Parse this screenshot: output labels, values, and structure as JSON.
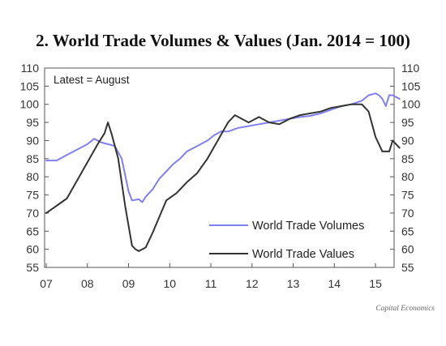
{
  "chart_data": {
    "type": "line",
    "title": "2. World Trade Volumes & Values (Jan. 2014 = 100)",
    "annotation": "Latest = August",
    "source": "Capital Economics",
    "ylim": [
      55,
      110
    ],
    "y_ticks": [
      "55",
      "60",
      "65",
      "70",
      "75",
      "80",
      "85",
      "90",
      "95",
      "100",
      "105",
      "110"
    ],
    "x_tick_labels": [
      "07",
      "08",
      "09",
      "10",
      "11",
      "12",
      "13",
      "14",
      "15"
    ],
    "x_start": "2007-01",
    "x_end": "2015-08",
    "legend_position": "bottom-right",
    "grid": false,
    "series": [
      {
        "name": "World Trade Volumes",
        "color": "#8080ee",
        "points": [
          [
            "2007-01",
            84.5
          ],
          [
            "2007-04",
            84.5
          ],
          [
            "2007-07",
            86
          ],
          [
            "2007-10",
            87.5
          ],
          [
            "2008-01",
            89
          ],
          [
            "2008-03",
            90.5
          ],
          [
            "2008-05",
            89.5
          ],
          [
            "2008-07",
            89
          ],
          [
            "2008-09",
            88.5
          ],
          [
            "2008-11",
            85
          ],
          [
            "2009-01",
            76
          ],
          [
            "2009-02",
            73.5
          ],
          [
            "2009-04",
            73.8
          ],
          [
            "2009-05",
            73
          ],
          [
            "2009-06",
            74.5
          ],
          [
            "2009-08",
            76.5
          ],
          [
            "2009-10",
            79.5
          ],
          [
            "2009-12",
            81.5
          ],
          [
            "2010-02",
            83.5
          ],
          [
            "2010-04",
            85
          ],
          [
            "2010-06",
            87
          ],
          [
            "2010-09",
            88.5
          ],
          [
            "2010-12",
            90
          ],
          [
            "2011-02",
            91.5
          ],
          [
            "2011-04",
            92.5
          ],
          [
            "2011-06",
            92.5
          ],
          [
            "2011-09",
            93.5
          ],
          [
            "2011-12",
            94
          ],
          [
            "2012-03",
            94.5
          ],
          [
            "2012-06",
            95
          ],
          [
            "2012-09",
            95.5
          ],
          [
            "2012-12",
            96
          ],
          [
            "2013-03",
            96.5
          ],
          [
            "2013-06",
            96.8
          ],
          [
            "2013-09",
            97.5
          ],
          [
            "2013-12",
            98.5
          ],
          [
            "2014-03",
            99.5
          ],
          [
            "2014-06",
            100
          ],
          [
            "2014-09",
            101
          ],
          [
            "2014-11",
            102.5
          ],
          [
            "2015-01",
            103
          ],
          [
            "2015-02",
            102.5
          ],
          [
            "2015-03",
            101.5
          ],
          [
            "2015-04",
            99.5
          ],
          [
            "2015-05",
            102.5
          ],
          [
            "2015-06",
            102.5
          ],
          [
            "2015-08",
            101.5
          ]
        ]
      },
      {
        "name": "World Trade Values",
        "color": "#333333",
        "points": [
          [
            "2007-01",
            70
          ],
          [
            "2007-04",
            72
          ],
          [
            "2007-07",
            74
          ],
          [
            "2007-10",
            79
          ],
          [
            "2008-01",
            84
          ],
          [
            "2008-04",
            89
          ],
          [
            "2008-06",
            92
          ],
          [
            "2008-07",
            95
          ],
          [
            "2008-08",
            92
          ],
          [
            "2008-10",
            85
          ],
          [
            "2008-12",
            72
          ],
          [
            "2009-02",
            61
          ],
          [
            "2009-03",
            60
          ],
          [
            "2009-04",
            59.5
          ],
          [
            "2009-06",
            60.5
          ],
          [
            "2009-08",
            64.5
          ],
          [
            "2009-10",
            69
          ],
          [
            "2009-12",
            73.5
          ],
          [
            "2010-03",
            75.5
          ],
          [
            "2010-06",
            78.5
          ],
          [
            "2010-09",
            81
          ],
          [
            "2010-12",
            85
          ],
          [
            "2011-03",
            90
          ],
          [
            "2011-06",
            95
          ],
          [
            "2011-08",
            97
          ],
          [
            "2011-10",
            96
          ],
          [
            "2011-12",
            95
          ],
          [
            "2012-03",
            96.5
          ],
          [
            "2012-06",
            95
          ],
          [
            "2012-09",
            94.5
          ],
          [
            "2012-12",
            96
          ],
          [
            "2013-03",
            97
          ],
          [
            "2013-06",
            97.5
          ],
          [
            "2013-09",
            98
          ],
          [
            "2013-12",
            99
          ],
          [
            "2014-03",
            99.5
          ],
          [
            "2014-06",
            100
          ],
          [
            "2014-09",
            100
          ],
          [
            "2014-11",
            98
          ],
          [
            "2015-01",
            91
          ],
          [
            "2015-03",
            87
          ],
          [
            "2015-05",
            87
          ],
          [
            "2015-06",
            90
          ],
          [
            "2015-08",
            88
          ]
        ]
      }
    ]
  }
}
